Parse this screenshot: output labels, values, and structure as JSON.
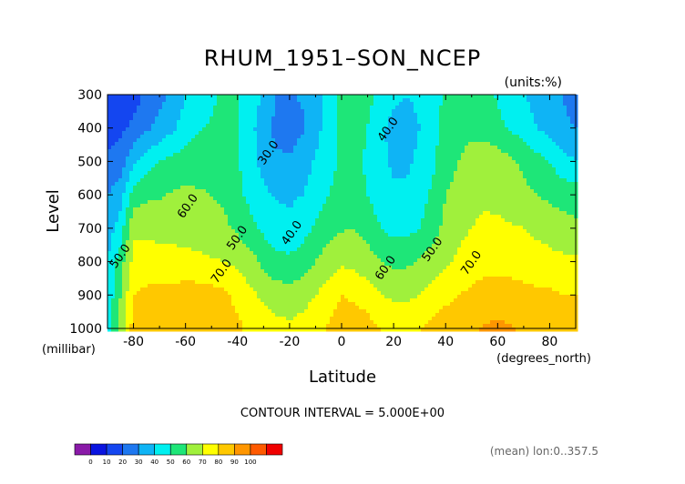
{
  "chart_data": {
    "type": "heatmap",
    "title": "RHUM_1951–SON_NCEP",
    "units_note": "(units:%)",
    "xlabel": "Latitude",
    "ylabel": "Level",
    "x_units": "(degrees_north)",
    "y_units": "(millibar)",
    "xlim": [
      -90,
      90
    ],
    "ylim": [
      1000,
      300
    ],
    "x_ticks": [
      -80,
      -60,
      -40,
      -20,
      0,
      20,
      40,
      60,
      80
    ],
    "x_tick_labels": [
      "-80",
      "-60",
      "-40",
      "-20",
      "0",
      "20",
      "40",
      "60",
      "80"
    ],
    "y_ticks": [
      300,
      400,
      500,
      600,
      700,
      800,
      900,
      1000
    ],
    "y_tick_labels": [
      "300",
      "400",
      "500",
      "600",
      "700",
      "800",
      "900",
      "1000"
    ],
    "contour_interval_text": "CONTOUR INTERVAL = 5.000E+00",
    "mean_note": "(mean) lon:0..357.5",
    "contour_labels": [
      {
        "text": "30.0",
        "lat": -27,
        "lev": 480
      },
      {
        "text": "40.0",
        "lat": -18,
        "lev": 720
      },
      {
        "text": "40.0",
        "lat": 19,
        "lev": 410
      },
      {
        "text": "50.0",
        "lat": -39,
        "lev": 735
      },
      {
        "text": "50.0",
        "lat": 36,
        "lev": 770
      },
      {
        "text": "60.0",
        "lat": -58,
        "lev": 640
      },
      {
        "text": "60.0",
        "lat": 18,
        "lev": 825
      },
      {
        "text": "50.0",
        "lat": -84,
        "lev": 790
      },
      {
        "text": "70.0",
        "lat": -45,
        "lev": 835
      },
      {
        "text": "70.0",
        "lat": 51,
        "lev": 810
      }
    ],
    "colorbar": {
      "levels": [
        0,
        10,
        20,
        30,
        40,
        50,
        60,
        70,
        80,
        90,
        100
      ],
      "level_labels": [
        "0",
        "10",
        "20",
        "30",
        "40",
        "50",
        "60",
        "70",
        "80",
        "90",
        "100"
      ],
      "colors": [
        "#8a1aa8",
        "#0a14e0",
        "#1446f0",
        "#1e78f0",
        "#0fb4f5",
        "#00f0f0",
        "#1ee678",
        "#a0f03c",
        "#ffff00",
        "#ffc800",
        "#ff9600",
        "#ff5a00",
        "#f00000"
      ]
    },
    "field": {
      "lat": [
        -90,
        -85,
        -80,
        -75,
        -70,
        -65,
        -60,
        -55,
        -50,
        -45,
        -40,
        -35,
        -30,
        -25,
        -20,
        -15,
        -10,
        -5,
        0,
        5,
        10,
        15,
        20,
        25,
        30,
        35,
        40,
        45,
        50,
        55,
        60,
        65,
        70,
        75,
        80,
        85,
        90
      ],
      "lev": [
        300,
        400,
        500,
        600,
        700,
        800,
        900,
        1000
      ],
      "values": [
        [
          10,
          13,
          16,
          22,
          27,
          32,
          40,
          45,
          48,
          52,
          50,
          45,
          39,
          30,
          29,
          31,
          37,
          44,
          52,
          56,
          53,
          47,
          42,
          40,
          42,
          47,
          51,
          55,
          55,
          52,
          49,
          44,
          40,
          37,
          32,
          30,
          28
        ],
        [
          15,
          18,
          22,
          28,
          33,
          38,
          45,
          49,
          51,
          55,
          52,
          43,
          34,
          27,
          26,
          29,
          37,
          44,
          52,
          55,
          50,
          42,
          37,
          36,
          40,
          47,
          53,
          56,
          57,
          56,
          52,
          49,
          45,
          40,
          36,
          31,
          30
        ],
        [
          22,
          25,
          38,
          45,
          50,
          53,
          55,
          56,
          56,
          55,
          51,
          43,
          37,
          32,
          31,
          35,
          41,
          46,
          52,
          53,
          48,
          42,
          38,
          38,
          42,
          48,
          56,
          60,
          65,
          67,
          65,
          62,
          58,
          54,
          50,
          44,
          40
        ],
        [
          30,
          35,
          55,
          58,
          59,
          61,
          62,
          61,
          60,
          58,
          53,
          47,
          42,
          39,
          38,
          40,
          45,
          50,
          54,
          54,
          50,
          45,
          42,
          42,
          46,
          52,
          60,
          63,
          67,
          68,
          67,
          65,
          62,
          60,
          58,
          56,
          55
        ],
        [
          35,
          45,
          68,
          67,
          66,
          66,
          66,
          65,
          64,
          62,
          58,
          53,
          48,
          44,
          43,
          46,
          51,
          56,
          59,
          60,
          56,
          50,
          47,
          47,
          50,
          55,
          63,
          67,
          70,
          72,
          72,
          71,
          70,
          68,
          66,
          64,
          62
        ],
        [
          40,
          55,
          73,
          75,
          75,
          74,
          73,
          72,
          71,
          70,
          68,
          64,
          57,
          53,
          52,
          55,
          60,
          65,
          68,
          67,
          64,
          60,
          58,
          58,
          61,
          65,
          68,
          72,
          75,
          77,
          77,
          76,
          75,
          74,
          73,
          72,
          72
        ],
        [
          42,
          60,
          80,
          82,
          82,
          83,
          85,
          85,
          84,
          82,
          77,
          72,
          68,
          65,
          64,
          66,
          70,
          75,
          80,
          78,
          75,
          70,
          68,
          68,
          70,
          73,
          77,
          80,
          82,
          84,
          84,
          84,
          83,
          82,
          82,
          80,
          80
        ],
        [
          45,
          65,
          84,
          86,
          87,
          87,
          88,
          88,
          87,
          85,
          82,
          78,
          75,
          73,
          72,
          74,
          77,
          81,
          86,
          87,
          84,
          80,
          78,
          78,
          80,
          83,
          86,
          88,
          89,
          91,
          92,
          91,
          89,
          88,
          87,
          86,
          86
        ]
      ]
    }
  }
}
